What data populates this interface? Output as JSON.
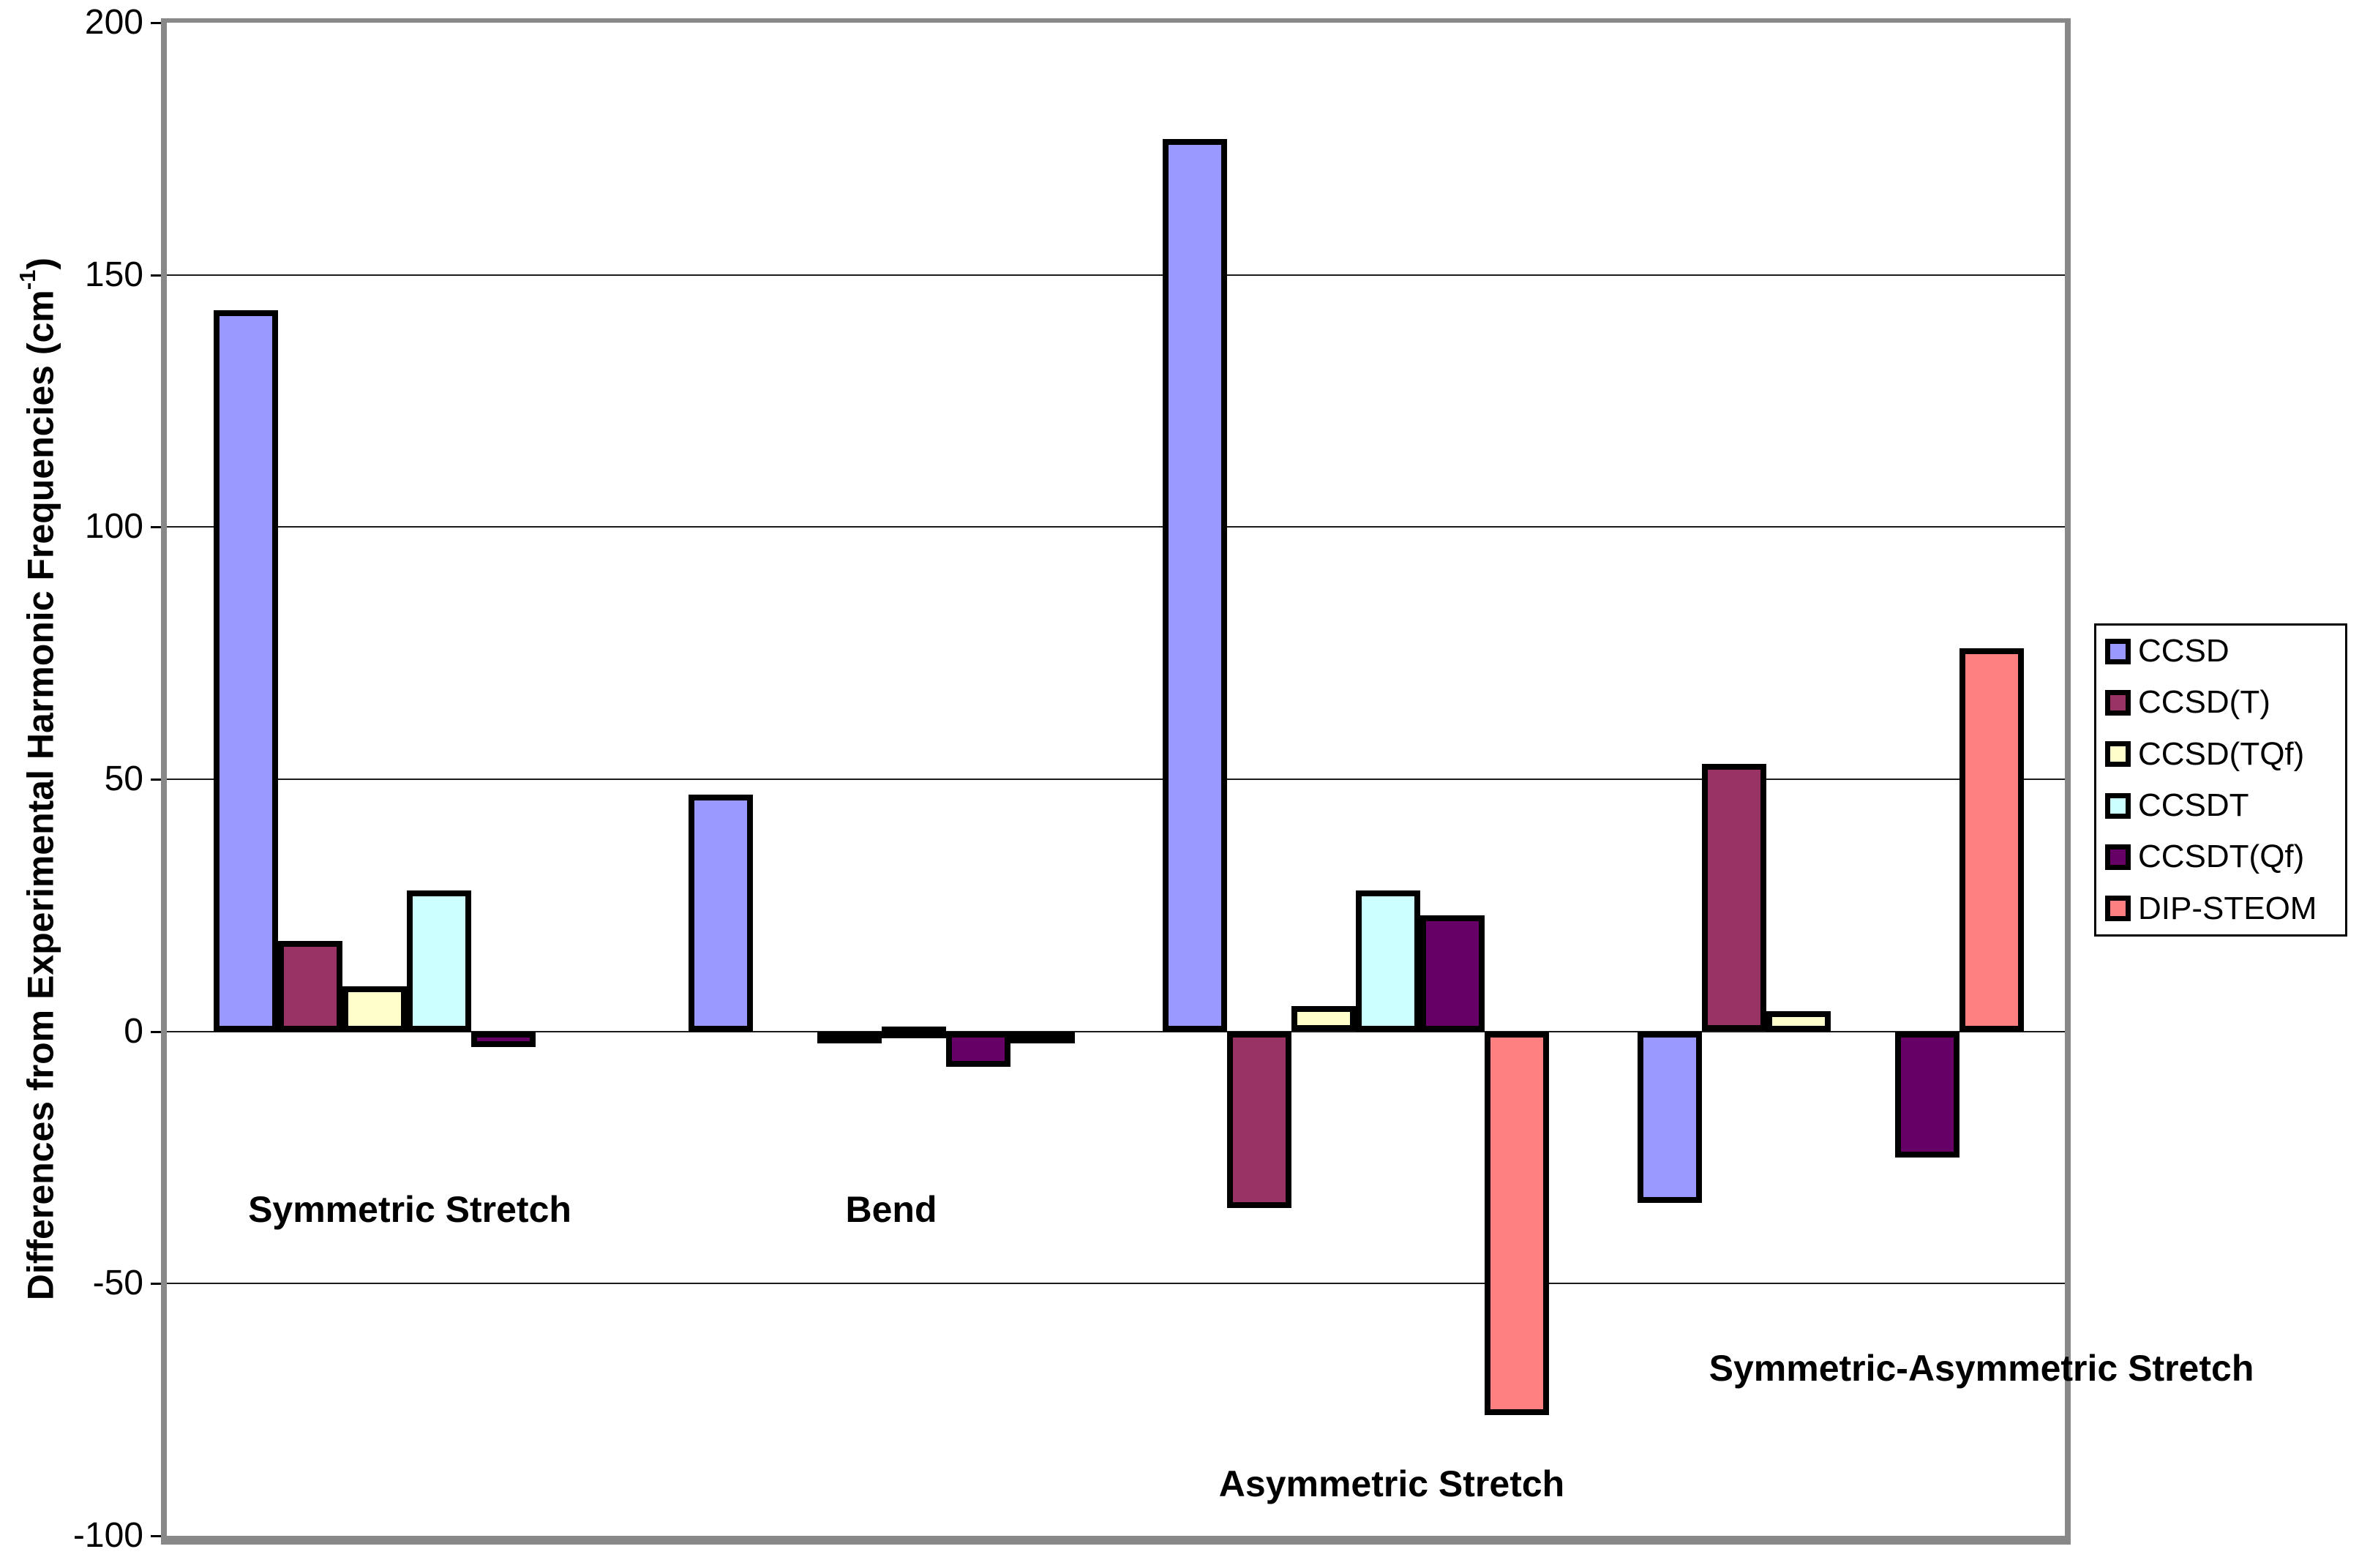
{
  "chart_data": {
    "type": "bar",
    "title": "",
    "ylabel": {
      "pre": "Differences from Experimental Harmonic Frequencies (cm",
      "sup": "-1",
      "post": ")",
      "full": "Differences from Experimental Harmonic Frequencies (cm-1)"
    },
    "xlabel": "",
    "ylim": [
      -100,
      200
    ],
    "ytick_step": 50,
    "yticks": [
      200,
      150,
      100,
      50,
      0,
      -50,
      -100
    ],
    "grid": "horizontal",
    "legend_position": "right",
    "categories": [
      "Symmetric Stretch",
      "Bend",
      "Asymmetric Stretch",
      "Symmetric-Asymmetric Stretch"
    ],
    "series": [
      {
        "name": "CCSD",
        "color": "#9999FF",
        "values": [
          143,
          47,
          177,
          -34
        ]
      },
      {
        "name": "CCSD(T)",
        "color": "#993366",
        "values": [
          18,
          0,
          -35,
          53
        ]
      },
      {
        "name": "CCSD(TQf)",
        "color": "#FFFFCC",
        "values": [
          9,
          -2,
          5,
          4
        ]
      },
      {
        "name": "CCSDT",
        "color": "#CCFFFF",
        "values": [
          28,
          1,
          28,
          0
        ]
      },
      {
        "name": "CCSDT(Qf)",
        "color": "#660066",
        "values": [
          -3,
          -7,
          23,
          -25
        ]
      },
      {
        "name": "DIP-STEOM",
        "color": "#FF8080",
        "values": [
          0,
          -1,
          -76,
          76
        ]
      }
    ],
    "note_zero_values_not_drawn": "bars with value 0 are not rendered in the source chart"
  },
  "frame": {
    "color": "#888888",
    "background": "#FFFFFF"
  }
}
